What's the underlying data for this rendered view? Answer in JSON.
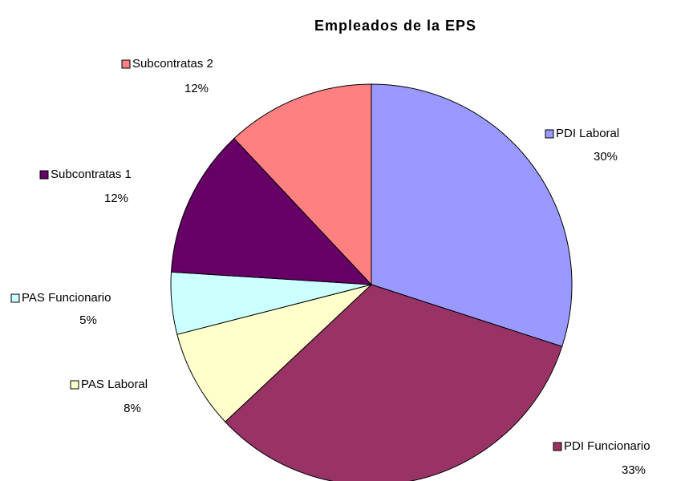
{
  "chart_data": {
    "type": "pie",
    "title": "Empleados de la EPS",
    "categories": [
      "PDI Laboral",
      "PDI Funcionario",
      "PAS Laboral",
      "PAS Funcionario",
      "Subcontratas 1",
      "Subcontratas 2"
    ],
    "values": [
      30,
      33,
      8,
      5,
      12,
      12
    ],
    "value_labels": [
      "30%",
      "33%",
      "8%",
      "5%",
      "12%",
      "12%"
    ],
    "colors": [
      "#9999ff",
      "#993366",
      "#ffffcc",
      "#ccffff",
      "#660066",
      "#ff8080"
    ]
  }
}
